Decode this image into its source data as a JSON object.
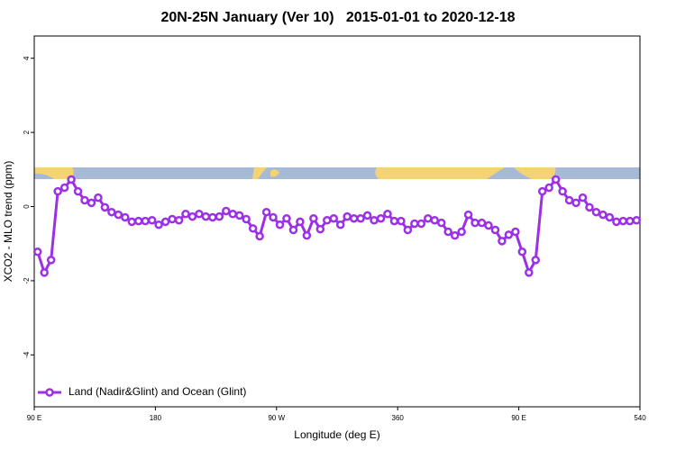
{
  "chart_data": {
    "type": "line",
    "title": "20N-25N January (Ver 10)   2015-01-01 to 2020-12-18",
    "x_label": "Longitude (deg E)",
    "y_label": "XCO2 - MLO trend (ppm)",
    "x": [
      92.5,
      97.5,
      102.5,
      107.5,
      112.5,
      117.5,
      122.5,
      127.5,
      132.5,
      137.5,
      142.5,
      147.5,
      152.5,
      157.5,
      162.5,
      167.5,
      172.5,
      177.5,
      182.5,
      187.5,
      192.5,
      197.5,
      202.5,
      207.5,
      212.5,
      217.5,
      222.5,
      227.5,
      232.5,
      237.5,
      242.5,
      247.5,
      252.5,
      257.5,
      262.5,
      267.5,
      272.5,
      277.5,
      282.5,
      287.5,
      292.5,
      297.5,
      302.5,
      307.5,
      312.5,
      317.5,
      322.5,
      327.5,
      332.5,
      337.5,
      342.5,
      347.5,
      352.5,
      357.5,
      362.5,
      367.5,
      372.5,
      377.5,
      382.5,
      387.5,
      392.5,
      397.5,
      402.5,
      407.5,
      412.5,
      417.5,
      422.5,
      427.5,
      432.5,
      437.5,
      442.5,
      447.5,
      452.5,
      457.5,
      462.5,
      467.5,
      472.5,
      477.5,
      482.5,
      487.5,
      492.5,
      497.5,
      502.5,
      507.5,
      512.5,
      517.5,
      522.5,
      527.5,
      532.5,
      537.5
    ],
    "series": [
      {
        "name": "Land (Nadir&Glint) and Ocean (Glint)",
        "color": "#9b30e6",
        "values": [
          -1.22,
          -1.78,
          -1.44,
          0.41,
          0.51,
          0.73,
          0.41,
          0.17,
          0.1,
          0.24,
          -0.02,
          -0.15,
          -0.22,
          -0.29,
          -0.41,
          -0.39,
          -0.39,
          -0.37,
          -0.49,
          -0.41,
          -0.34,
          -0.37,
          -0.2,
          -0.27,
          -0.2,
          -0.27,
          -0.29,
          -0.27,
          -0.12,
          -0.2,
          -0.24,
          -0.34,
          -0.59,
          -0.8,
          -0.15,
          -0.29,
          -0.49,
          -0.32,
          -0.63,
          -0.41,
          -0.78,
          -0.32,
          -0.61,
          -0.37,
          -0.32,
          -0.49,
          -0.27,
          -0.32,
          -0.32,
          -0.24,
          -0.37,
          -0.32,
          -0.2,
          -0.39,
          -0.39,
          -0.63,
          -0.46,
          -0.46,
          -0.32,
          -0.37,
          -0.44,
          -0.68,
          -0.78,
          -0.68,
          -0.22,
          -0.44,
          -0.44,
          -0.51,
          -0.63,
          -0.93,
          -0.76,
          -0.68,
          -1.22,
          -1.78,
          -1.44,
          0.41,
          0.51,
          0.73,
          0.41,
          0.17,
          0.1,
          0.24,
          -0.02,
          -0.15,
          -0.22,
          -0.29,
          -0.41,
          -0.39,
          -0.39,
          -0.37
        ]
      }
    ],
    "xlim": [
      90,
      540
    ],
    "xticks": [
      {
        "value": 90,
        "label": "90 E"
      },
      180,
      {
        "value": 270,
        "label": "90 W"
      },
      360,
      {
        "value": 450,
        "label": "90 E"
      },
      540
    ],
    "ylim": [
      -5.4,
      4.6
    ],
    "yticks": [
      -4,
      -2,
      0,
      2,
      4
    ],
    "legend": "bottom-left"
  }
}
